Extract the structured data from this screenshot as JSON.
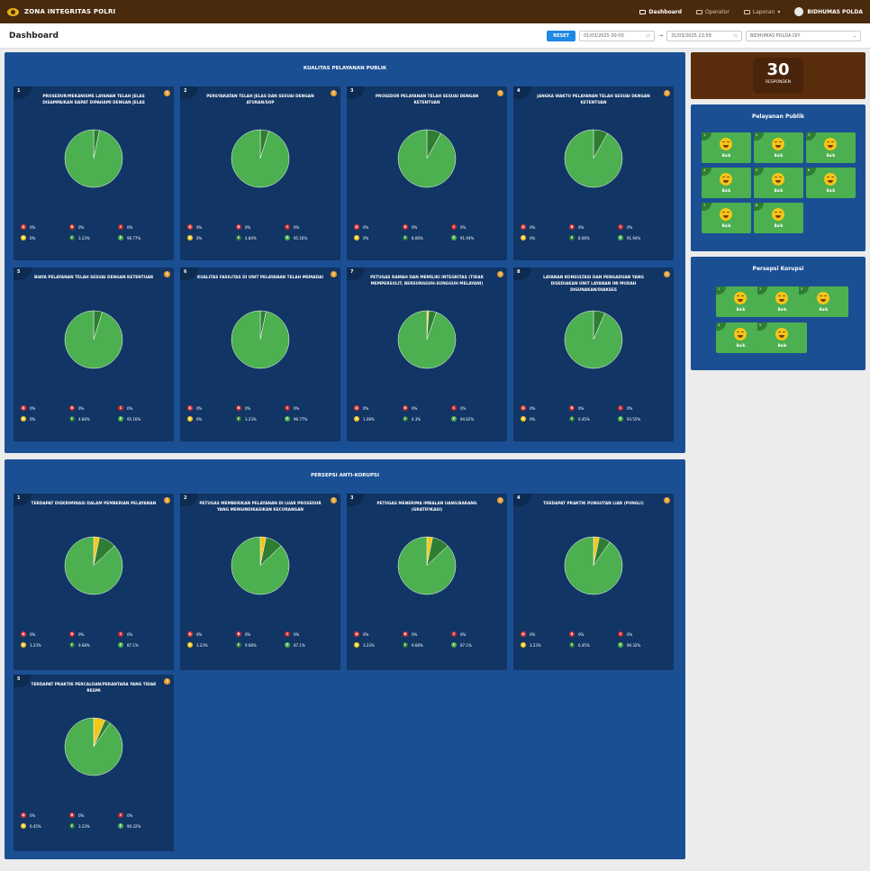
{
  "app": {
    "title": "ZONA INTEGRITAS POLRI",
    "user": "BIDHUMAS POLDA"
  },
  "nav": [
    {
      "label": "Dashboard",
      "active": true
    },
    {
      "label": "Operator",
      "active": false
    },
    {
      "label": "Laporan",
      "active": false
    }
  ],
  "page": {
    "title": "Dashboard"
  },
  "filters": {
    "reset": "RESET",
    "date_from": "01/03/2025 00:00",
    "date_to": "31/03/2025 23:59",
    "unit": "BIDHUMAS POLDA DIY"
  },
  "responden": {
    "count": "30",
    "label": "RESPONDEN"
  },
  "colors": {
    "A": "#e53935",
    "B": "#d32f2f",
    "C": "#c62828",
    "D": "#f5c518",
    "E": "#2e7d32",
    "F": "#4caf50"
  },
  "sections": [
    {
      "title": "KUALITAS PELAYANAN PUBLIK",
      "cards": [
        {
          "num": "1",
          "question": "PROSEDUR/MEKANISME LAYANAN TELAH JELAS DISAMPAIKAN DAPAT DIPAHAMI DENGAN JELAS",
          "values": {
            "A": "0%",
            "B": "0%",
            "C": "0%",
            "D": "0%",
            "E": "3.23%",
            "F": "96.77%"
          }
        },
        {
          "num": "2",
          "question": "PERSYARATAN TELAH JELAS DAN SESUAI DENGAN ATURAN/SOP",
          "values": {
            "A": "0%",
            "B": "0%",
            "C": "0%",
            "D": "0%",
            "E": "4.84%",
            "F": "95.16%"
          }
        },
        {
          "num": "3",
          "question": "PROSEDUR PELAYANAN TELAH SESUAI DENGAN KETENTUAN",
          "values": {
            "A": "0%",
            "B": "0%",
            "C": "0%",
            "D": "0%",
            "E": "8.06%",
            "F": "91.94%"
          }
        },
        {
          "num": "4",
          "question": "JANGKA WAKTU PELAYANAN TELAH SESUAI DENGAN KETENTUAN",
          "values": {
            "A": "0%",
            "B": "0%",
            "C": "0%",
            "D": "0%",
            "E": "8.06%",
            "F": "91.94%"
          }
        },
        {
          "num": "5",
          "question": "BIAYA PELAYANAN TELAH SESUAI DENGAN KETENTUAN",
          "values": {
            "A": "0%",
            "B": "0%",
            "C": "0%",
            "D": "0%",
            "E": "4.84%",
            "F": "95.16%"
          }
        },
        {
          "num": "6",
          "question": "KUALITAS FASILITAS DI UNIT PELAYANAN TELAH MEMADAI",
          "values": {
            "A": "0%",
            "B": "0%",
            "C": "0%",
            "D": "0%",
            "E": "3.23%",
            "F": "96.77%"
          }
        },
        {
          "num": "7",
          "question": "PETUGAS RAMAH DAN MEMILIKI INTEGRITAS (TIDAK MEMPERSULIT, BERSUNGGUH-SUNGGUH MELAYANI)",
          "values": {
            "A": "0%",
            "B": "0%",
            "C": "0%",
            "D": "1.08%",
            "E": "4.3%",
            "F": "94.62%"
          }
        },
        {
          "num": "8",
          "question": "LAYANAN KONSULTASI DAN PENGADUAN YANG DISEDIAKAN UNIT LAYANAN INI MUDAH DIGUNAKAN/DIAKSES",
          "values": {
            "A": "0%",
            "B": "0%",
            "C": "0%",
            "D": "0%",
            "E": "6.45%",
            "F": "93.55%"
          }
        }
      ]
    },
    {
      "title": "PERSEPSI ANTI-KORUPSI",
      "cards": [
        {
          "num": "1",
          "question": "TERDAPAT DISKRIMINASI DALAM PEMBERIAN PELAYANAN",
          "values": {
            "A": "0%",
            "B": "0%",
            "C": "0%",
            "D": "3.23%",
            "E": "9.68%",
            "F": "87.1%"
          }
        },
        {
          "num": "2",
          "question": "PETUGAS MEMBERIKAN PELAYANAN DI LUAR PROSEDUR YANG MENGINDIKASIKAN KECURANGAN",
          "values": {
            "A": "0%",
            "B": "0%",
            "C": "0%",
            "D": "3.23%",
            "E": "9.68%",
            "F": "87.1%"
          }
        },
        {
          "num": "3",
          "question": "PETUGAS MENERIMA IMBALAN UANG/BARANG (GRATIFIKASI)",
          "values": {
            "A": "0%",
            "B": "0%",
            "C": "0%",
            "D": "3.23%",
            "E": "9.68%",
            "F": "87.1%"
          }
        },
        {
          "num": "4",
          "question": "TERDAPAT PRAKTIK PUNGUTAN LIAR (PUNGLI)",
          "values": {
            "A": "0%",
            "B": "0%",
            "C": "0%",
            "D": "3.23%",
            "E": "6.45%",
            "F": "90.32%"
          }
        },
        {
          "num": "5",
          "question": "TERDAPAT PRAKTIK PERCALOAN/PERANTARA YANG TIDAK RESMI",
          "values": {
            "A": "0%",
            "B": "0%",
            "C": "0%",
            "D": "6.45%",
            "E": "3.23%",
            "F": "90.32%"
          }
        }
      ]
    }
  ],
  "side": {
    "pelayanan": {
      "title": "Pelayanan Publik",
      "tiles": [
        {
          "num": "1",
          "label": "Baik"
        },
        {
          "num": "2",
          "label": "Baik"
        },
        {
          "num": "3",
          "label": "Baik"
        },
        {
          "num": "4",
          "label": "Baik"
        },
        {
          "num": "5",
          "label": "Baik"
        },
        {
          "num": "6",
          "label": "Baik"
        },
        {
          "num": "7",
          "label": "Baik"
        },
        {
          "num": "8",
          "label": "Baik"
        }
      ]
    },
    "korupsi": {
      "title": "Persepsi Korupsi",
      "tiles": [
        {
          "num": "1",
          "label": "Baik"
        },
        {
          "num": "2",
          "label": "Baik"
        },
        {
          "num": "3",
          "label": "Baik"
        },
        {
          "num": "4",
          "label": "Baik"
        },
        {
          "num": "5",
          "label": "Baik"
        }
      ]
    }
  }
}
